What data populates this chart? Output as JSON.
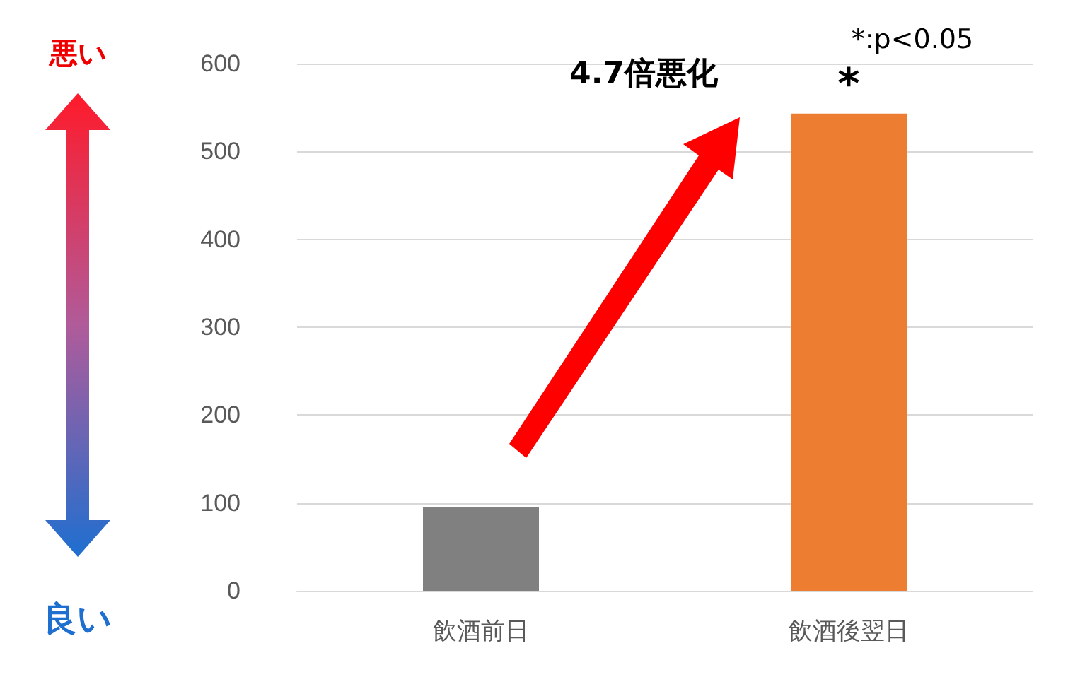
{
  "chart_data": {
    "type": "bar",
    "categories": [
      "飲酒前日",
      "飲酒後翌日"
    ],
    "values": [
      95,
      543
    ],
    "colors": [
      "#808080",
      "#ed7d31"
    ],
    "ylim": [
      0,
      600
    ],
    "yticks": [
      0,
      100,
      200,
      300,
      400,
      500,
      600
    ],
    "grid": "y",
    "annotations": [
      "*",
      "4.7倍悪化",
      "*:p<0.05",
      "悪い",
      "良い"
    ]
  }
}
